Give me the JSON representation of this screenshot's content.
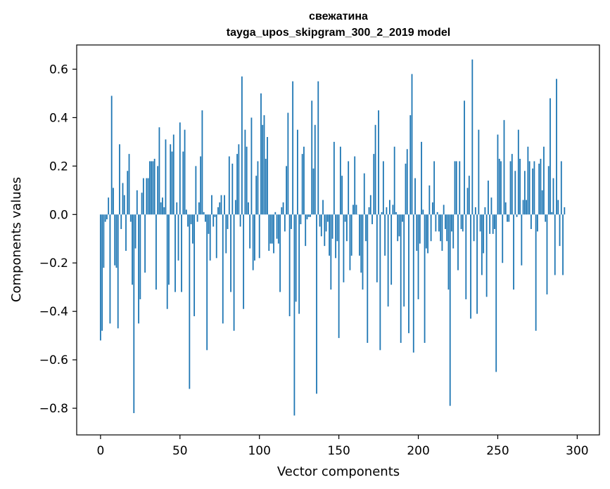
{
  "chart_data": {
    "type": "bar",
    "title": "свежатина",
    "subtitle": "tayga_upos_skipgram_300_2_2019 model",
    "xlabel": "Vector components",
    "ylabel": "Components values",
    "xlim": [
      -15,
      314
    ],
    "ylim": [
      -0.91,
      0.7
    ],
    "xticks": [
      0,
      50,
      100,
      150,
      200,
      250,
      300
    ],
    "yticks": [
      -0.8,
      -0.6,
      -0.4,
      -0.2,
      0.0,
      0.2,
      0.4,
      0.6
    ],
    "bar_color": "#1f77b4",
    "values": [
      -0.52,
      -0.48,
      -0.22,
      -0.03,
      -0.02,
      0.07,
      -0.45,
      0.49,
      0.11,
      -0.21,
      -0.22,
      -0.47,
      0.29,
      -0.06,
      0.13,
      0.08,
      -0.15,
      0.18,
      0.25,
      -0.03,
      -0.29,
      -0.82,
      -0.14,
      0.1,
      -0.45,
      -0.35,
      0.09,
      0.15,
      -0.24,
      0.15,
      0.15,
      0.22,
      0.22,
      0.22,
      0.23,
      -0.31,
      0.2,
      0.36,
      0.05,
      0.07,
      0.03,
      0.31,
      -0.39,
      -0.29,
      0.29,
      0.26,
      0.33,
      -0.32,
      0.05,
      -0.19,
      0.38,
      -0.32,
      0.26,
      0.35,
      0.02,
      -0.05,
      -0.72,
      -0.04,
      -0.12,
      -0.42,
      0.2,
      -0.03,
      0.05,
      0.24,
      0.43,
      0.01,
      -0.03,
      -0.56,
      -0.08,
      -0.19,
      0.08,
      -0.05,
      -0.01,
      -0.18,
      0.03,
      0.05,
      0.08,
      -0.45,
      0.08,
      -0.16,
      -0.06,
      0.24,
      -0.32,
      0.21,
      -0.48,
      0.06,
      0.25,
      0.29,
      -0.05,
      0.57,
      -0.39,
      0.35,
      0.28,
      0.05,
      -0.14,
      0.4,
      -0.23,
      -0.19,
      0.16,
      0.22,
      -0.18,
      0.5,
      0.37,
      0.41,
      0.23,
      0.32,
      -0.15,
      -0.12,
      -0.12,
      -0.16,
      0.01,
      -0.1,
      -0.12,
      -0.32,
      0.03,
      0.05,
      -0.07,
      0.2,
      0.42,
      -0.42,
      -0.06,
      0.55,
      -0.83,
      -0.36,
      0.35,
      -0.41,
      -0.04,
      0.25,
      0.28,
      -0.13,
      -0.02,
      -0.01,
      -0.01,
      0.47,
      0.19,
      0.37,
      -0.74,
      0.55,
      -0.05,
      -0.09,
      0.06,
      -0.13,
      -0.07,
      -0.03,
      -0.17,
      -0.31,
      -0.1,
      0.3,
      -0.18,
      -0.11,
      -0.51,
      0.28,
      0.16,
      -0.28,
      -0.03,
      -0.11,
      0.22,
      -0.23,
      -0.17,
      0.04,
      0.24,
      0.04,
      0.0,
      -0.17,
      -0.24,
      -0.31,
      0.17,
      -0.11,
      -0.53,
      0.03,
      0.08,
      -0.04,
      0.25,
      0.37,
      -0.28,
      0.43,
      -0.56,
      0.01,
      0.22,
      -0.17,
      0.03,
      -0.38,
      0.06,
      -0.29,
      0.04,
      0.28,
      0.01,
      -0.11,
      -0.09,
      -0.53,
      -0.03,
      -0.38,
      0.21,
      0.27,
      -0.49,
      0.41,
      0.58,
      -0.57,
      0.15,
      -0.15,
      -0.35,
      -0.12,
      0.3,
      0.02,
      -0.53,
      -0.14,
      -0.16,
      0.12,
      -0.11,
      0.05,
      0.22,
      -0.07,
      0.01,
      -0.07,
      -0.11,
      -0.15,
      0.04,
      -0.06,
      -0.11,
      -0.31,
      -0.79,
      -0.07,
      -0.14,
      0.22,
      0.22,
      -0.23,
      0.22,
      -0.06,
      -0.07,
      0.47,
      -0.35,
      0.11,
      0.16,
      -0.43,
      0.64,
      -0.11,
      0.03,
      -0.41,
      0.35,
      -0.07,
      -0.25,
      -0.16,
      0.03,
      -0.34,
      0.14,
      -0.08,
      0.07,
      -0.08,
      -0.06,
      -0.65,
      0.33,
      0.23,
      0.22,
      -0.2,
      0.39,
      0.05,
      -0.03,
      -0.03,
      0.22,
      0.25,
      -0.31,
      0.18,
      -0.01,
      0.35,
      0.23,
      -0.21,
      0.06,
      0.18,
      0.06,
      0.28,
      0.22,
      -0.06,
      0.19,
      0.22,
      -0.48,
      -0.07,
      0.21,
      0.23,
      0.1,
      0.28,
      -0.03,
      -0.33,
      0.2,
      0.48,
      0.01,
      0.15,
      -0.25,
      0.56,
      0.06,
      -0.13,
      0.22,
      -0.25,
      0.03
    ]
  }
}
